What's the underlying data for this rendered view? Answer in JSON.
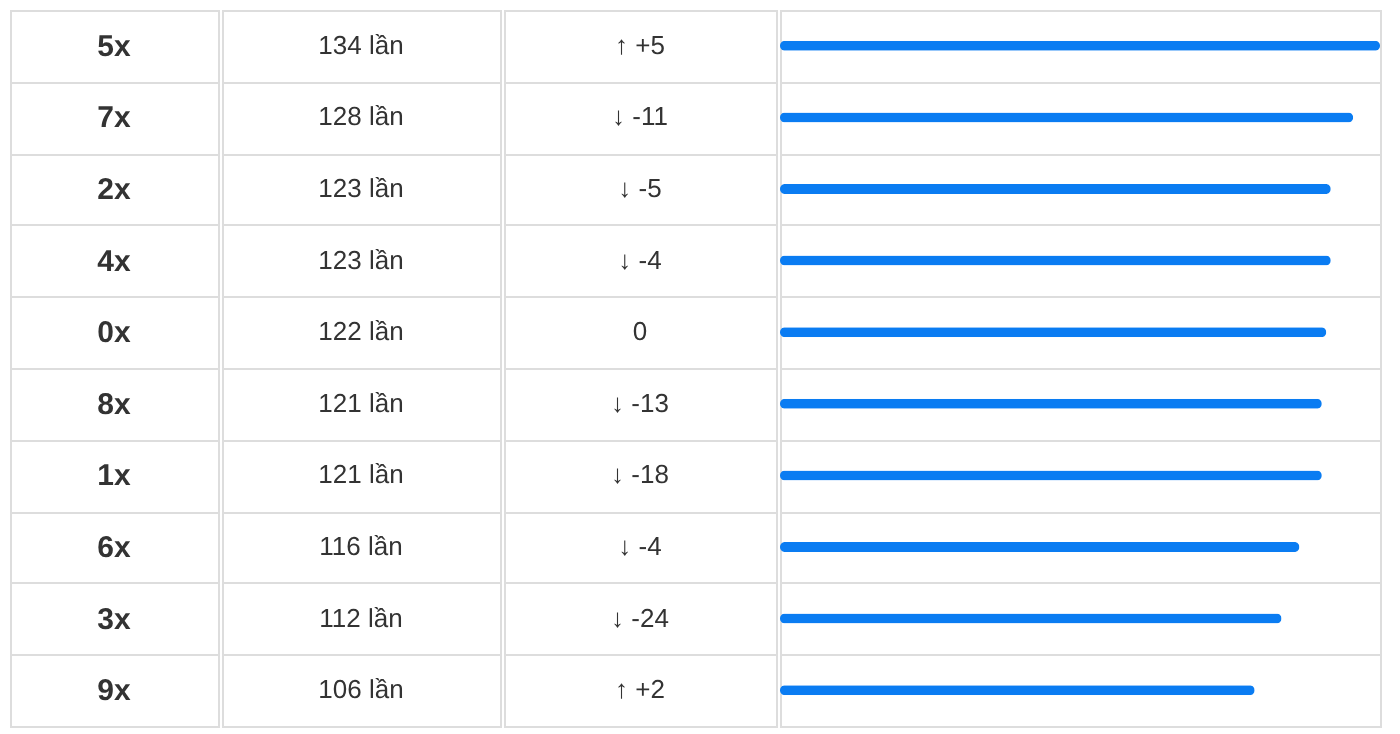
{
  "chart_data": {
    "type": "bar",
    "orientation": "horizontal",
    "categories": [
      "5x",
      "7x",
      "2x",
      "4x",
      "0x",
      "8x",
      "1x",
      "6x",
      "3x",
      "9x"
    ],
    "values": [
      134,
      128,
      123,
      123,
      122,
      121,
      121,
      116,
      112,
      106
    ],
    "value_labels": [
      "134 lần",
      "128 lần",
      "123 lần",
      "123 lần",
      "122 lần",
      "121 lần",
      "121 lần",
      "116 lần",
      "112 lần",
      "106 lần"
    ],
    "color": "#0a7cf2",
    "xlim": [
      0,
      134
    ],
    "tick_labels": false,
    "grid": "y",
    "annotations": [
      "↑ +5",
      "↓ -11",
      "↓ -5",
      "↓ -4",
      "0",
      "↓ -13",
      "↓ -18",
      "↓ -4",
      "↓ -24",
      "↑ +2"
    ]
  }
}
